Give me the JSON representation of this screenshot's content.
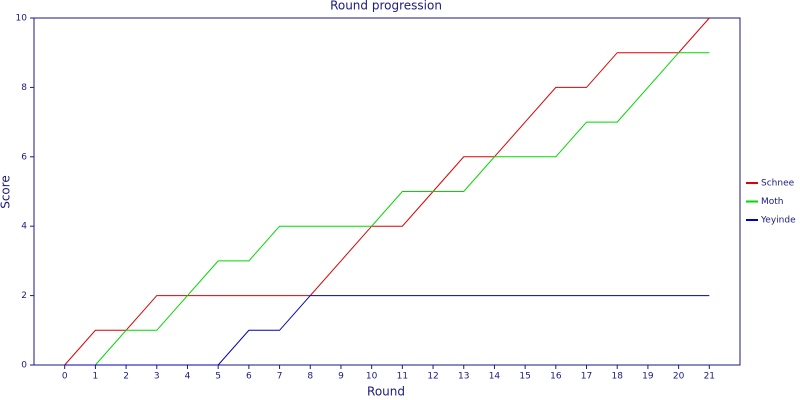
{
  "chart_data": {
    "type": "line",
    "title": "Round progression",
    "x_label": "Round",
    "y_label": "Score",
    "x": [
      0,
      1,
      2,
      3,
      4,
      5,
      6,
      7,
      8,
      9,
      10,
      11,
      12,
      13,
      14,
      15,
      16,
      17,
      18,
      19,
      20,
      21
    ],
    "series": [
      {
        "name": "Schnee",
        "color": "#e00000",
        "values": [
          0,
          1,
          1,
          2,
          2,
          2,
          2,
          2,
          2,
          3,
          4,
          4,
          5,
          6,
          6,
          7,
          8,
          8,
          9,
          9,
          9,
          10
        ]
      },
      {
        "name": "Moth",
        "color": "#00d800",
        "values": [
          0,
          0,
          1,
          1,
          2,
          3,
          3,
          4,
          4,
          4,
          4,
          5,
          5,
          5,
          6,
          6,
          6,
          7,
          7,
          8,
          9,
          9
        ]
      },
      {
        "name": "Yeyinde",
        "color": "#0000c0",
        "values": [
          0,
          0,
          0,
          0,
          0,
          0,
          1,
          1,
          2,
          2,
          2,
          2,
          2,
          2,
          2,
          2,
          2,
          2,
          2,
          2,
          2,
          2
        ]
      }
    ],
    "xlim": [
      -1,
      22
    ],
    "ylim": [
      0,
      10
    ],
    "xticks": [
      0,
      1,
      2,
      3,
      4,
      5,
      6,
      7,
      8,
      9,
      10,
      11,
      12,
      13,
      14,
      15,
      16,
      17,
      18,
      19,
      20,
      21
    ],
    "yticks": [
      0,
      2,
      4,
      6,
      8,
      10
    ],
    "grid": false,
    "legend": "right"
  }
}
